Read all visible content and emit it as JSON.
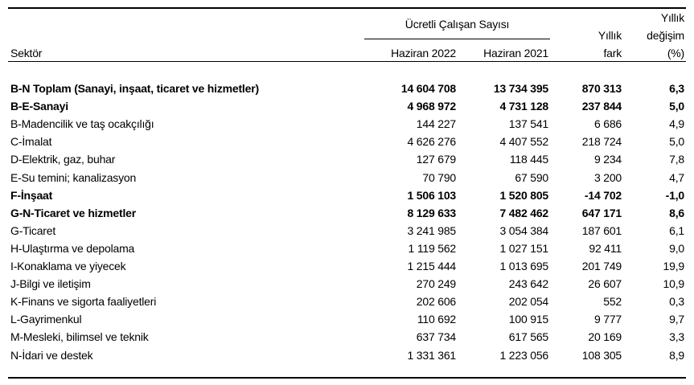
{
  "header": {
    "sector": "Sektör",
    "group_title": "Ücretli Çalışan Sayısı",
    "col_2022": "Haziran 2022",
    "col_2021": "Haziran 2021",
    "diff_line1": "Yıllık",
    "diff_line2": "fark",
    "pct_line1": "Yıllık",
    "pct_line2": "değişim",
    "pct_line3": "(%)"
  },
  "rows": [
    {
      "sector": "B-N Toplam (Sanayi, inşaat, ticaret ve hizmetler)",
      "y2022": "14 604 708",
      "y2021": "13 734 395",
      "diff": "870 313",
      "pct": "6,3",
      "bold": true
    },
    {
      "sector": "B-E-Sanayi",
      "y2022": "4 968 972",
      "y2021": "4 731 128",
      "diff": "237 844",
      "pct": "5,0",
      "bold": true
    },
    {
      "sector": "B-Madencilik ve taş ocakçılığı",
      "y2022": "144 227",
      "y2021": "137 541",
      "diff": "6 686",
      "pct": "4,9",
      "bold": false
    },
    {
      "sector": "C-İmalat",
      "y2022": "4 626 276",
      "y2021": "4 407 552",
      "diff": "218 724",
      "pct": "5,0",
      "bold": false
    },
    {
      "sector": "D-Elektrik, gaz, buhar",
      "y2022": "127 679",
      "y2021": "118 445",
      "diff": "9 234",
      "pct": "7,8",
      "bold": false
    },
    {
      "sector": "E-Su temini; kanalizasyon",
      "y2022": "70 790",
      "y2021": "67 590",
      "diff": "3 200",
      "pct": "4,7",
      "bold": false
    },
    {
      "sector": "F-İnşaat",
      "y2022": "1 506 103",
      "y2021": "1 520 805",
      "diff": "-14 702",
      "pct": "-1,0",
      "bold": true
    },
    {
      "sector": "G-N-Ticaret ve hizmetler",
      "y2022": "8 129 633",
      "y2021": "7 482 462",
      "diff": "647 171",
      "pct": "8,6",
      "bold": true
    },
    {
      "sector": "G-Ticaret",
      "y2022": "3 241 985",
      "y2021": "3 054 384",
      "diff": "187 601",
      "pct": "6,1",
      "bold": false
    },
    {
      "sector": "H-Ulaştırma ve depolama",
      "y2022": "1 119 562",
      "y2021": "1 027 151",
      "diff": "92 411",
      "pct": "9,0",
      "bold": false
    },
    {
      "sector": "I-Konaklama ve yiyecek",
      "y2022": "1 215 444",
      "y2021": "1 013 695",
      "diff": "201 749",
      "pct": "19,9",
      "bold": false
    },
    {
      "sector": "J-Bilgi ve iletişim",
      "y2022": "270 249",
      "y2021": "243 642",
      "diff": "26 607",
      "pct": "10,9",
      "bold": false
    },
    {
      "sector": "K-Finans ve sigorta faaliyetleri",
      "y2022": "202 606",
      "y2021": "202 054",
      "diff": "552",
      "pct": "0,3",
      "bold": false
    },
    {
      "sector": "L-Gayrimenkul",
      "y2022": "110 692",
      "y2021": "100 915",
      "diff": "9 777",
      "pct": "9,7",
      "bold": false
    },
    {
      "sector": "M-Mesleki, bilimsel ve teknik",
      "y2022": "637 734",
      "y2021": "617 565",
      "diff": "20 169",
      "pct": "3,3",
      "bold": false
    },
    {
      "sector": "N-İdari ve destek",
      "y2022": "1 331 361",
      "y2021": "1 223 056",
      "diff": "108 305",
      "pct": "8,9",
      "bold": false
    }
  ]
}
